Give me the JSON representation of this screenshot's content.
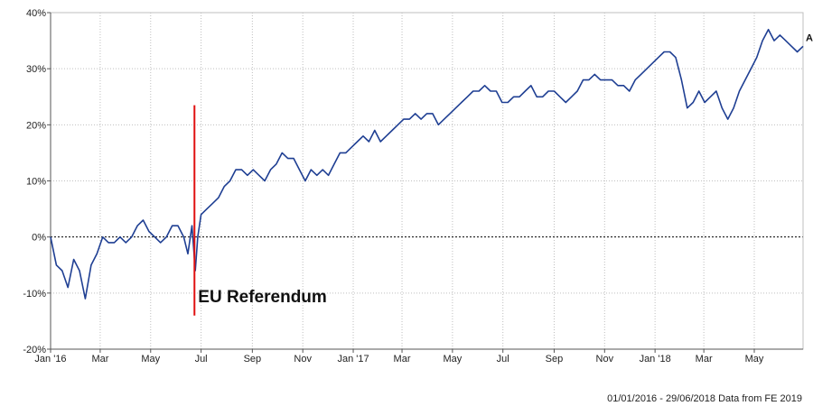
{
  "chart_data": {
    "type": "line",
    "title": "",
    "xlabel": "",
    "ylabel": "",
    "x_range": [
      "2016-01-01",
      "2018-06-29"
    ],
    "ylim": [
      -20,
      40
    ],
    "y_ticks": [
      -20,
      -10,
      0,
      10,
      20,
      30,
      40
    ],
    "y_tick_labels": [
      "-20%",
      "-10%",
      "0%",
      "10%",
      "20%",
      "30%",
      "40%"
    ],
    "x_ticks": [
      {
        "label": "Jan '16",
        "date": "2016-01-01"
      },
      {
        "label": "Mar",
        "date": "2016-03-01"
      },
      {
        "label": "May",
        "date": "2016-05-01"
      },
      {
        "label": "Jul",
        "date": "2016-07-01"
      },
      {
        "label": "Sep",
        "date": "2016-09-01"
      },
      {
        "label": "Nov",
        "date": "2016-11-01"
      },
      {
        "label": "Jan '17",
        "date": "2017-01-01"
      },
      {
        "label": "Mar",
        "date": "2017-03-01"
      },
      {
        "label": "May",
        "date": "2017-05-01"
      },
      {
        "label": "Jul",
        "date": "2017-07-01"
      },
      {
        "label": "Sep",
        "date": "2017-09-01"
      },
      {
        "label": "Nov",
        "date": "2017-11-01"
      },
      {
        "label": "Jan '18",
        "date": "2018-01-01"
      },
      {
        "label": "Mar",
        "date": "2018-03-01"
      },
      {
        "label": "May",
        "date": "2018-05-01"
      }
    ],
    "grid": true,
    "zero_line": "dotted",
    "series": [
      {
        "name": "A",
        "color": "#1f3f93",
        "points": [
          [
            "2016-01-01",
            0
          ],
          [
            "2016-01-08",
            -5
          ],
          [
            "2016-01-15",
            -6
          ],
          [
            "2016-01-22",
            -9
          ],
          [
            "2016-01-29",
            -4
          ],
          [
            "2016-02-05",
            -6
          ],
          [
            "2016-02-12",
            -11
          ],
          [
            "2016-02-19",
            -5
          ],
          [
            "2016-02-26",
            -3
          ],
          [
            "2016-03-04",
            0
          ],
          [
            "2016-03-11",
            -1
          ],
          [
            "2016-03-18",
            -1
          ],
          [
            "2016-03-25",
            0
          ],
          [
            "2016-04-01",
            -1
          ],
          [
            "2016-04-08",
            0
          ],
          [
            "2016-04-15",
            2
          ],
          [
            "2016-04-22",
            3
          ],
          [
            "2016-04-29",
            1
          ],
          [
            "2016-05-06",
            0
          ],
          [
            "2016-05-13",
            -1
          ],
          [
            "2016-05-20",
            0
          ],
          [
            "2016-05-27",
            2
          ],
          [
            "2016-06-03",
            2
          ],
          [
            "2016-06-10",
            0
          ],
          [
            "2016-06-15",
            -3
          ],
          [
            "2016-06-20",
            2
          ],
          [
            "2016-06-24",
            -6
          ],
          [
            "2016-06-27",
            0
          ],
          [
            "2016-07-01",
            4
          ],
          [
            "2016-07-08",
            5
          ],
          [
            "2016-07-15",
            6
          ],
          [
            "2016-07-22",
            7
          ],
          [
            "2016-07-29",
            9
          ],
          [
            "2016-08-05",
            10
          ],
          [
            "2016-08-12",
            12
          ],
          [
            "2016-08-19",
            12
          ],
          [
            "2016-08-26",
            11
          ],
          [
            "2016-09-02",
            12
          ],
          [
            "2016-09-09",
            11
          ],
          [
            "2016-09-16",
            10
          ],
          [
            "2016-09-23",
            12
          ],
          [
            "2016-09-30",
            13
          ],
          [
            "2016-10-07",
            15
          ],
          [
            "2016-10-14",
            14
          ],
          [
            "2016-10-21",
            14
          ],
          [
            "2016-10-28",
            12
          ],
          [
            "2016-11-04",
            10
          ],
          [
            "2016-11-11",
            12
          ],
          [
            "2016-11-18",
            11
          ],
          [
            "2016-11-25",
            12
          ],
          [
            "2016-12-02",
            11
          ],
          [
            "2016-12-09",
            13
          ],
          [
            "2016-12-16",
            15
          ],
          [
            "2016-12-23",
            15
          ],
          [
            "2016-12-30",
            16
          ],
          [
            "2017-01-06",
            17
          ],
          [
            "2017-01-13",
            18
          ],
          [
            "2017-01-20",
            17
          ],
          [
            "2017-01-27",
            19
          ],
          [
            "2017-02-03",
            17
          ],
          [
            "2017-02-10",
            18
          ],
          [
            "2017-02-17",
            19
          ],
          [
            "2017-02-24",
            20
          ],
          [
            "2017-03-03",
            21
          ],
          [
            "2017-03-10",
            21
          ],
          [
            "2017-03-17",
            22
          ],
          [
            "2017-03-24",
            21
          ],
          [
            "2017-03-31",
            22
          ],
          [
            "2017-04-07",
            22
          ],
          [
            "2017-04-14",
            20
          ],
          [
            "2017-04-21",
            21
          ],
          [
            "2017-04-28",
            22
          ],
          [
            "2017-05-05",
            23
          ],
          [
            "2017-05-12",
            24
          ],
          [
            "2017-05-19",
            25
          ],
          [
            "2017-05-26",
            26
          ],
          [
            "2017-06-02",
            26
          ],
          [
            "2017-06-09",
            27
          ],
          [
            "2017-06-16",
            26
          ],
          [
            "2017-06-23",
            26
          ],
          [
            "2017-06-30",
            24
          ],
          [
            "2017-07-07",
            24
          ],
          [
            "2017-07-14",
            25
          ],
          [
            "2017-07-21",
            25
          ],
          [
            "2017-07-28",
            26
          ],
          [
            "2017-08-04",
            27
          ],
          [
            "2017-08-11",
            25
          ],
          [
            "2017-08-18",
            25
          ],
          [
            "2017-08-25",
            26
          ],
          [
            "2017-09-01",
            26
          ],
          [
            "2017-09-08",
            25
          ],
          [
            "2017-09-15",
            24
          ],
          [
            "2017-09-22",
            25
          ],
          [
            "2017-09-29",
            26
          ],
          [
            "2017-10-06",
            28
          ],
          [
            "2017-10-13",
            28
          ],
          [
            "2017-10-20",
            29
          ],
          [
            "2017-10-27",
            28
          ],
          [
            "2017-11-03",
            28
          ],
          [
            "2017-11-10",
            28
          ],
          [
            "2017-11-17",
            27
          ],
          [
            "2017-11-24",
            27
          ],
          [
            "2017-12-01",
            26
          ],
          [
            "2017-12-08",
            28
          ],
          [
            "2017-12-15",
            29
          ],
          [
            "2017-12-22",
            30
          ],
          [
            "2017-12-29",
            31
          ],
          [
            "2018-01-05",
            32
          ],
          [
            "2018-01-12",
            33
          ],
          [
            "2018-01-19",
            33
          ],
          [
            "2018-01-26",
            32
          ],
          [
            "2018-02-02",
            28
          ],
          [
            "2018-02-09",
            23
          ],
          [
            "2018-02-16",
            24
          ],
          [
            "2018-02-23",
            26
          ],
          [
            "2018-03-02",
            24
          ],
          [
            "2018-03-09",
            25
          ],
          [
            "2018-03-16",
            26
          ],
          [
            "2018-03-23",
            23
          ],
          [
            "2018-03-30",
            21
          ],
          [
            "2018-04-06",
            23
          ],
          [
            "2018-04-13",
            26
          ],
          [
            "2018-04-20",
            28
          ],
          [
            "2018-04-27",
            30
          ],
          [
            "2018-05-04",
            32
          ],
          [
            "2018-05-11",
            35
          ],
          [
            "2018-05-18",
            37
          ],
          [
            "2018-05-25",
            35
          ],
          [
            "2018-06-01",
            36
          ],
          [
            "2018-06-08",
            35
          ],
          [
            "2018-06-15",
            34
          ],
          [
            "2018-06-22",
            33
          ],
          [
            "2018-06-29",
            34
          ]
        ]
      }
    ],
    "annotations": [
      {
        "text": "EU Referendum",
        "date": "2016-06-23",
        "y_from": -14,
        "y_to": 23.5,
        "color": "#e01010"
      }
    ]
  },
  "footer": "01/01/2016 - 29/06/2018 Data from FE 2019"
}
